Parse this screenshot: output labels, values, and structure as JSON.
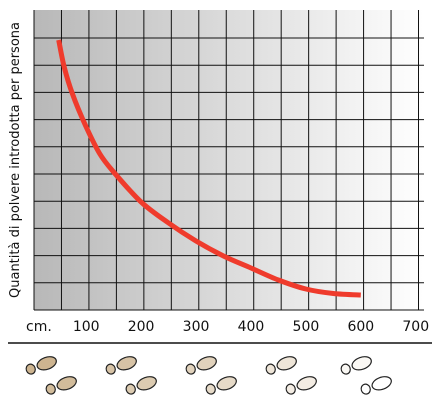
{
  "chart_data": {
    "type": "line",
    "title": "",
    "ylabel": "Quantità di polvere introdotta per persona",
    "x_unit_label": "cm.",
    "x_tick_labels": [
      "100",
      "200",
      "300",
      "400",
      "500",
      "600",
      "700"
    ],
    "xlim": [
      0,
      700
    ],
    "grid": true,
    "y_ticks_labeled": false,
    "series": [
      {
        "x": [
          50,
          60,
          75,
          100,
          125,
          150,
          200,
          250,
          300,
          350,
          400,
          450,
          500,
          550,
          600
        ],
        "y": [
          9.0,
          8.1,
          7.2,
          6.1,
          5.2,
          4.6,
          3.6,
          2.9,
          2.3,
          1.8,
          1.4,
          1.0,
          0.7,
          0.55,
          0.5
        ]
      }
    ],
    "y_range": [
      0,
      10
    ],
    "colors": {
      "line": "#ef3b2c",
      "grid": "#111111",
      "gradient_start": "#b8b8b8",
      "gradient_end": "#ffffff",
      "footprints_dark": "#cdb490",
      "footprints_light": "#ffffff"
    },
    "decoration": "footprints-row"
  }
}
